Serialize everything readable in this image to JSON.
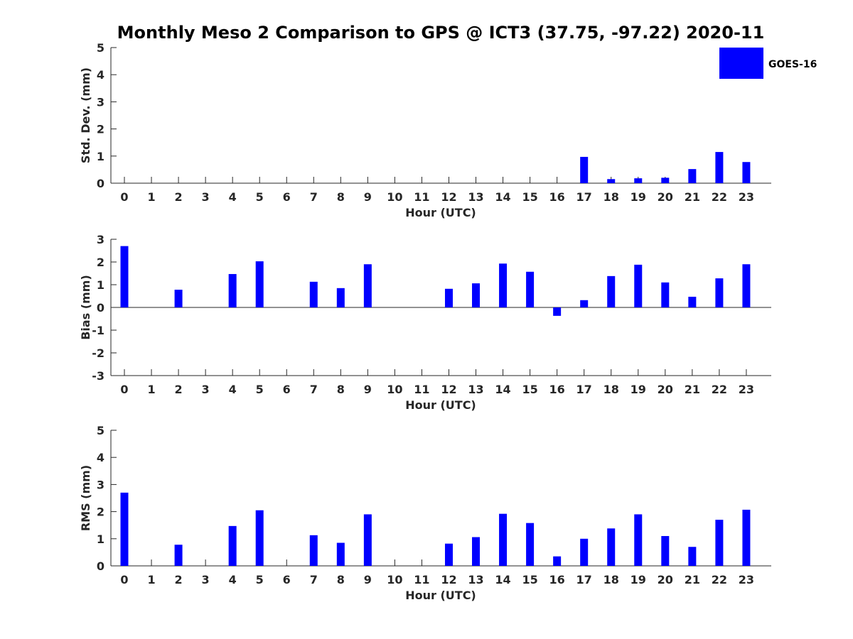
{
  "chart_data": [
    {
      "type": "bar",
      "title": "Monthly Meso 2 Comparison to GPS @ ICT3 (37.75, -97.22) 2020-11",
      "xlabel": "Hour (UTC)",
      "ylabel": "Std. Dev. (mm)",
      "ylim": [
        0,
        5
      ],
      "yticks": [
        "0",
        "1",
        "2",
        "3",
        "4",
        "5"
      ],
      "categories": [
        "0",
        "1",
        "2",
        "3",
        "4",
        "5",
        "6",
        "7",
        "8",
        "9",
        "10",
        "11",
        "12",
        "13",
        "14",
        "15",
        "16",
        "17",
        "18",
        "19",
        "20",
        "21",
        "22",
        "23"
      ],
      "series": [
        {
          "name": "GOES-16",
          "color": "#0000ff",
          "values": [
            0,
            0,
            0,
            0,
            0,
            0,
            0,
            0,
            0,
            0,
            0,
            0,
            0,
            0,
            0,
            0,
            0,
            0.97,
            0.15,
            0.18,
            0.2,
            0.52,
            1.15,
            0.78
          ]
        }
      ],
      "legend": {
        "entries": [
          "GOES-16"
        ],
        "placement": "top-right"
      }
    },
    {
      "type": "bar",
      "xlabel": "Hour (UTC)",
      "ylabel": "Bias (mm)",
      "ylim": [
        -3,
        3
      ],
      "yticks": [
        "-3",
        "-2",
        "-1",
        "0",
        "1",
        "2",
        "3"
      ],
      "categories": [
        "0",
        "1",
        "2",
        "3",
        "4",
        "5",
        "6",
        "7",
        "8",
        "9",
        "10",
        "11",
        "12",
        "13",
        "14",
        "15",
        "16",
        "17",
        "18",
        "19",
        "20",
        "21",
        "22",
        "23"
      ],
      "series": [
        {
          "name": "GOES-16",
          "color": "#0000ff",
          "values": [
            2.7,
            0,
            0.78,
            0,
            1.47,
            2.03,
            0,
            1.13,
            0.85,
            1.9,
            0,
            0,
            0.82,
            1.06,
            1.93,
            1.57,
            -0.37,
            0.32,
            1.38,
            1.88,
            1.1,
            0.47,
            1.28,
            1.9
          ]
        }
      ]
    },
    {
      "type": "bar",
      "xlabel": "Hour (UTC)",
      "ylabel": "RMS (mm)",
      "ylim": [
        0,
        5
      ],
      "yticks": [
        "0",
        "1",
        "2",
        "3",
        "4",
        "5"
      ],
      "categories": [
        "0",
        "1",
        "2",
        "3",
        "4",
        "5",
        "6",
        "7",
        "8",
        "9",
        "10",
        "11",
        "12",
        "13",
        "14",
        "15",
        "16",
        "17",
        "18",
        "19",
        "20",
        "21",
        "22",
        "23"
      ],
      "series": [
        {
          "name": "GOES-16",
          "color": "#0000ff",
          "values": [
            2.7,
            0,
            0.78,
            0,
            1.47,
            2.05,
            0,
            1.13,
            0.85,
            1.9,
            0,
            0,
            0.82,
            1.06,
            1.92,
            1.58,
            0.35,
            1.0,
            1.38,
            1.9,
            1.1,
            0.7,
            1.7,
            2.07
          ]
        }
      ]
    }
  ]
}
